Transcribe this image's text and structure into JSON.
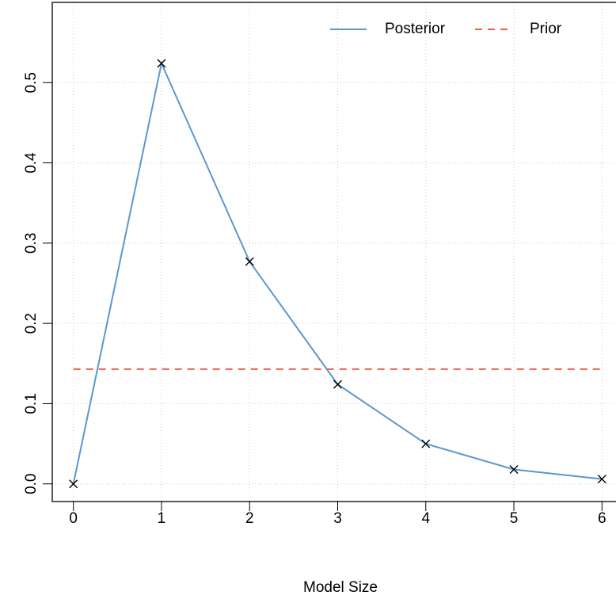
{
  "chart_data": {
    "type": "line",
    "x_label": "Model Size",
    "x": [
      0,
      1,
      2,
      3,
      4,
      5,
      6
    ],
    "series": [
      {
        "name": "Posterior",
        "color": "#5b97d0",
        "values": [
          0.0,
          0.524,
          0.277,
          0.124,
          0.05,
          0.018,
          0.006
        ],
        "markers": true,
        "dash": false
      },
      {
        "name": "Prior",
        "color": "#f0604f",
        "values": [
          0.143,
          0.143,
          0.143,
          0.143,
          0.143,
          0.143,
          0.143
        ],
        "markers": false,
        "dash": true
      }
    ],
    "xlim": [
      -0.24,
      6.24
    ],
    "xticks": [
      0,
      1,
      2,
      3,
      4,
      5,
      6
    ],
    "ylim": [
      -0.022,
      0.6
    ],
    "yticks": [
      {
        "value": 0,
        "label": "0.0"
      },
      0.1,
      0.2,
      0.3,
      0.4,
      0.5
    ],
    "grid": true,
    "legend": "top-right"
  }
}
